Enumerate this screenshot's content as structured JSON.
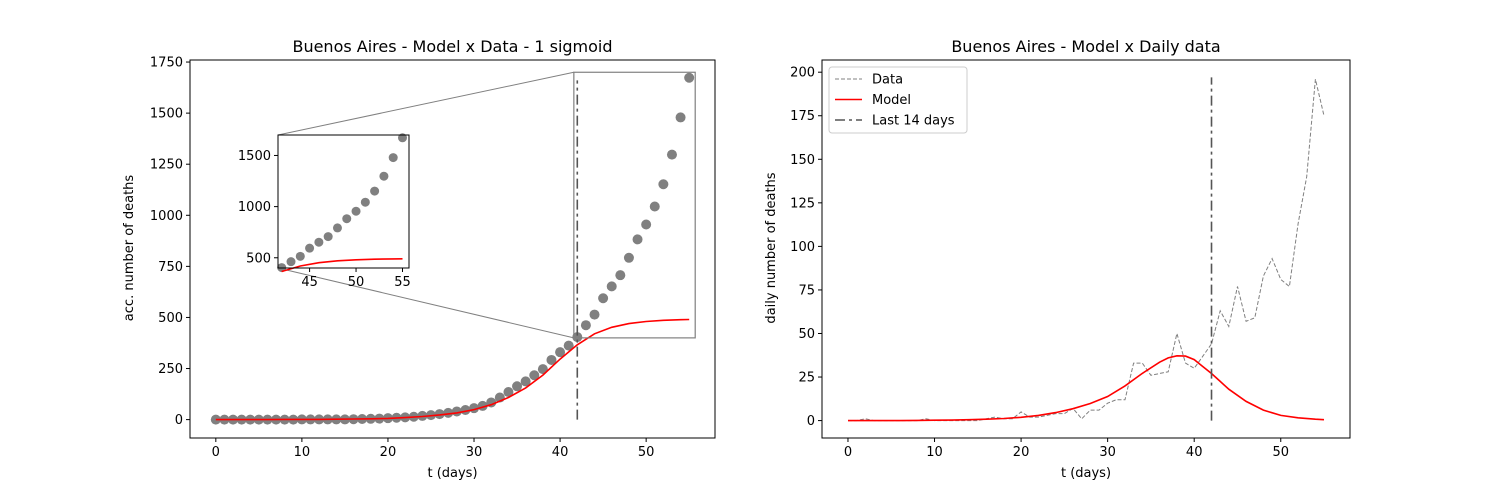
{
  "chart_data": [
    {
      "type": "scatter",
      "title": "Buenos Aires - Model x Data - 1 sigmoid",
      "xlabel": "t (days)",
      "ylabel": "acc. number of deaths",
      "xlim": [
        -3.0,
        58.0
      ],
      "ylim": [
        -90,
        1760
      ],
      "xticks": [
        0,
        10,
        20,
        30,
        40,
        50
      ],
      "yticks": [
        0,
        250,
        500,
        750,
        1000,
        1250,
        1500,
        1750
      ],
      "marker_color": "#808080",
      "model_color": "#ff0000",
      "vline": {
        "x": 42,
        "y_range": [
          0,
          1660
        ],
        "color": "#555555",
        "style": "dashdot"
      },
      "series": [
        {
          "kind": "scatter",
          "x": [
            0,
            1,
            2,
            3,
            4,
            5,
            6,
            7,
            8,
            9,
            10,
            11,
            12,
            13,
            14,
            15,
            16,
            17,
            18,
            19,
            20,
            21,
            22,
            23,
            24,
            25,
            26,
            27,
            28,
            29,
            30,
            31,
            32,
            33,
            34,
            35,
            36,
            37,
            38,
            39,
            40,
            41,
            42,
            43,
            44,
            45,
            46,
            47,
            48,
            49,
            50,
            51,
            52,
            53,
            54,
            55
          ],
          "y": [
            0,
            0,
            0,
            0,
            0,
            0,
            0,
            0,
            0,
            0,
            1,
            1,
            1,
            1,
            1,
            1,
            2,
            3,
            4,
            5,
            7,
            9,
            11,
            14,
            18,
            22,
            27,
            33,
            40,
            47,
            56,
            67,
            84,
            108,
            135,
            163,
            187,
            217,
            247,
            292,
            330,
            362,
            404,
            462,
            514,
            594,
            652,
            707,
            792,
            882,
            955,
            1043,
            1152,
            1297,
            1479,
            1673
          ]
        },
        {
          "kind": "line",
          "name_hidden": "model",
          "x": [
            0,
            2,
            4,
            6,
            8,
            10,
            12,
            14,
            16,
            18,
            20,
            22,
            24,
            26,
            28,
            30,
            32,
            34,
            36,
            38,
            40,
            42,
            44,
            46,
            48,
            50,
            52,
            54,
            55
          ],
          "y": [
            0,
            0,
            0,
            0,
            1,
            1,
            1,
            2,
            3,
            4,
            6,
            10,
            15,
            23,
            33,
            49,
            73,
            108,
            155,
            218,
            296,
            366,
            420,
            452,
            470,
            480,
            486,
            489,
            490
          ]
        }
      ],
      "inset": {
        "xlim": [
          41.6,
          55.7
        ],
        "ylim": [
          400,
          1700
        ],
        "xticks": [
          45,
          50,
          55
        ],
        "yticks": [
          500,
          1000,
          1500
        ]
      }
    },
    {
      "type": "line",
      "title": "Buenos Aires - Model x Daily data",
      "xlabel": "t (days)",
      "ylabel": "daily number of deaths",
      "xlim": [
        -3.0,
        58.0
      ],
      "ylim": [
        -10,
        207
      ],
      "xticks": [
        0,
        10,
        20,
        30,
        40,
        50
      ],
      "yticks": [
        0,
        25,
        50,
        75,
        100,
        125,
        150,
        175,
        200
      ],
      "legend_position": "upper-left",
      "vline": {
        "x": 42,
        "y_range": [
          0,
          197
        ],
        "color": "#555555",
        "style": "dashdot"
      },
      "series": [
        {
          "name": "Data",
          "color": "#808080",
          "style": "dashed",
          "x": [
            0,
            1,
            2,
            3,
            4,
            5,
            6,
            7,
            8,
            9,
            10,
            11,
            12,
            13,
            14,
            15,
            16,
            17,
            18,
            19,
            20,
            21,
            22,
            23,
            24,
            25,
            26,
            27,
            28,
            29,
            30,
            31,
            32,
            33,
            34,
            35,
            36,
            37,
            38,
            39,
            40,
            41,
            42,
            43,
            44,
            45,
            46,
            47,
            48,
            49,
            50,
            51,
            52,
            53,
            54,
            55
          ],
          "y": [
            0,
            0,
            1,
            0,
            0,
            0,
            0,
            0,
            0,
            1,
            0,
            0,
            0,
            0,
            0,
            0,
            1,
            2,
            1,
            1,
            5,
            2,
            2,
            3,
            4,
            4,
            7,
            1,
            6,
            6,
            10,
            12,
            12,
            33,
            33,
            26,
            27,
            28,
            50,
            33,
            30,
            37,
            44,
            63,
            54,
            77,
            57,
            59,
            83,
            93,
            81,
            77,
            113,
            140,
            196,
            175
          ]
        },
        {
          "name": "Model",
          "color": "#ff0000",
          "style": "solid",
          "x": [
            0,
            2,
            4,
            6,
            8,
            10,
            12,
            14,
            16,
            18,
            20,
            22,
            24,
            26,
            28,
            30,
            32,
            34,
            36,
            37,
            38,
            39,
            40,
            41,
            42,
            43,
            44,
            46,
            48,
            50,
            52,
            54,
            55
          ],
          "y": [
            0,
            0,
            0,
            0,
            0.1,
            0.2,
            0.3,
            0.5,
            0.8,
            1.2,
            1.9,
            3,
            4.6,
            6.8,
            9.8,
            13.8,
            19.9,
            27.1,
            33.5,
            36,
            37.2,
            37,
            35,
            31,
            27,
            22.5,
            18,
            11,
            6,
            3,
            1.6,
            0.8,
            0.5
          ]
        },
        {
          "name": "Last 14 days",
          "color": "#555555",
          "style": "dashdot",
          "x": [],
          "y": []
        }
      ]
    }
  ]
}
